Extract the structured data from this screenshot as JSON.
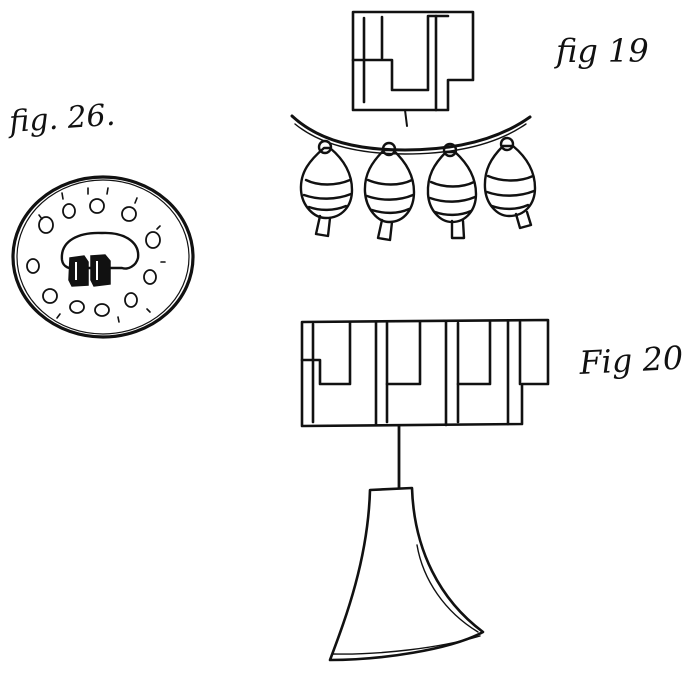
{
  "figures": {
    "fig26": {
      "label": "fig. 26."
    },
    "fig19": {
      "label": "fig 19"
    },
    "fig20": {
      "label": "Fig 20"
    }
  },
  "colors": {
    "ink": "#111111",
    "paper": "#ffffff"
  }
}
